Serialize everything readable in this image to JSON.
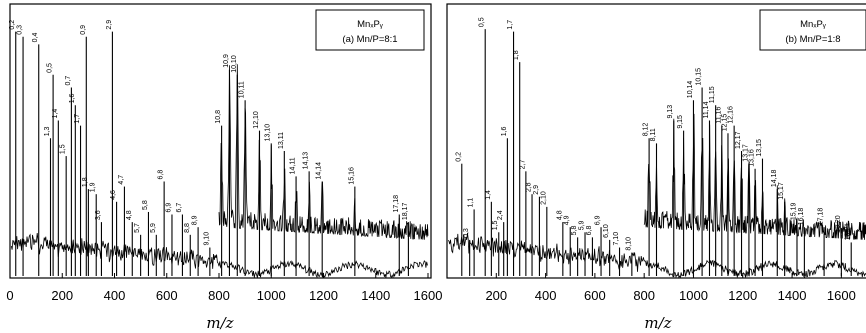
{
  "chart_data": [
    {
      "type": "line",
      "panel": "a",
      "legend": {
        "formula": "MnₓPᵧ",
        "condition": "(a) Mn/P=8:1",
        "placement": "top-right"
      },
      "xlabel": "m/z",
      "ylabel": "",
      "xlim": [
        0,
        1600
      ],
      "xticks": [
        0,
        200,
        400,
        600,
        800,
        1000,
        1200,
        1400,
        1600
      ],
      "inset_region_mz": [
        800,
        1600
      ],
      "peaks": [
        {
          "label": "0,2",
          "mz": 22,
          "intensity": 0.97
        },
        {
          "label": "0,3",
          "mz": 50,
          "intensity": 0.95
        },
        {
          "label": "0,4",
          "mz": 110,
          "intensity": 0.92
        },
        {
          "label": "1,3",
          "mz": 155,
          "intensity": 0.55
        },
        {
          "label": "0,5",
          "mz": 165,
          "intensity": 0.8
        },
        {
          "label": "1,4",
          "mz": 185,
          "intensity": 0.62
        },
        {
          "label": "1,5",
          "mz": 215,
          "intensity": 0.48
        },
        {
          "label": "0,7",
          "mz": 235,
          "intensity": 0.75
        },
        {
          "label": "1,6",
          "mz": 250,
          "intensity": 0.68
        },
        {
          "label": "1,7",
          "mz": 270,
          "intensity": 0.6
        },
        {
          "label": "0,9",
          "mz": 292,
          "intensity": 0.95
        },
        {
          "label": "1,8",
          "mz": 300,
          "intensity": 0.35
        },
        {
          "label": "1,9",
          "mz": 330,
          "intensity": 0.33
        },
        {
          "label": "3,6",
          "mz": 350,
          "intensity": 0.22
        },
        {
          "label": "2,9",
          "mz": 392,
          "intensity": 0.97
        },
        {
          "label": "4,6",
          "mz": 408,
          "intensity": 0.3
        },
        {
          "label": "4,7",
          "mz": 438,
          "intensity": 0.36
        },
        {
          "label": "4,8",
          "mz": 468,
          "intensity": 0.22
        },
        {
          "label": "5,7",
          "mz": 500,
          "intensity": 0.17
        },
        {
          "label": "5,8",
          "mz": 530,
          "intensity": 0.26
        },
        {
          "label": "5,9",
          "mz": 560,
          "intensity": 0.17
        },
        {
          "label": "6,8",
          "mz": 590,
          "intensity": 0.38
        },
        {
          "label": "6,9",
          "mz": 620,
          "intensity": 0.25
        },
        {
          "label": "6,7",
          "mz": 660,
          "intensity": 0.25
        },
        {
          "label": "8,8",
          "mz": 690,
          "intensity": 0.17
        },
        {
          "label": "8,9",
          "mz": 720,
          "intensity": 0.2
        },
        {
          "label": "9,10",
          "mz": 765,
          "intensity": 0.12
        },
        {
          "label": "10,8",
          "mz": 810,
          "intensity": 0.6
        },
        {
          "label": "10,9",
          "mz": 840,
          "intensity": 0.82
        },
        {
          "label": "10,10",
          "mz": 870,
          "intensity": 0.8
        },
        {
          "label": "10,11",
          "mz": 900,
          "intensity": 0.7
        },
        {
          "label": "12,10",
          "mz": 955,
          "intensity": 0.58
        },
        {
          "label": "13,10",
          "mz": 1000,
          "intensity": 0.53
        },
        {
          "label": "13,11",
          "mz": 1050,
          "intensity": 0.5
        },
        {
          "label": "14,11",
          "mz": 1095,
          "intensity": 0.4
        },
        {
          "label": "14,13",
          "mz": 1145,
          "intensity": 0.42
        },
        {
          "label": "14,14",
          "mz": 1195,
          "intensity": 0.38
        },
        {
          "label": "15,16",
          "mz": 1320,
          "intensity": 0.36
        },
        {
          "label": "17,18",
          "mz": 1490,
          "intensity": 0.25
        },
        {
          "label": "18,17",
          "mz": 1525,
          "intensity": 0.22
        }
      ]
    },
    {
      "type": "line",
      "panel": "b",
      "legend": {
        "formula": "MnₓPᵧ",
        "condition": "(b) Mn/P=1:8",
        "placement": "top-right"
      },
      "xlabel": "m/z",
      "ylabel": "",
      "xlim": [
        0,
        1700
      ],
      "xticks": [
        200,
        400,
        600,
        800,
        1000,
        1200,
        1400,
        1600
      ],
      "inset_region_mz": [
        800,
        1700
      ],
      "peaks": [
        {
          "label": "0,2",
          "mz": 60,
          "intensity": 0.45
        },
        {
          "label": "0,3",
          "mz": 92,
          "intensity": 0.15
        },
        {
          "label": "0,5",
          "mz": 155,
          "intensity": 0.98
        },
        {
          "label": "1,1",
          "mz": 110,
          "intensity": 0.27
        },
        {
          "label": "1,4",
          "mz": 180,
          "intensity": 0.3
        },
        {
          "label": "1,5",
          "mz": 210,
          "intensity": 0.18
        },
        {
          "label": "2,4",
          "mz": 230,
          "intensity": 0.22
        },
        {
          "label": "1,6",
          "mz": 245,
          "intensity": 0.55
        },
        {
          "label": "1,7",
          "mz": 270,
          "intensity": 0.97
        },
        {
          "label": "1,8",
          "mz": 295,
          "intensity": 0.85
        },
        {
          "label": "2,7",
          "mz": 320,
          "intensity": 0.42
        },
        {
          "label": "2,8",
          "mz": 345,
          "intensity": 0.33
        },
        {
          "label": "2,9",
          "mz": 375,
          "intensity": 0.32
        },
        {
          "label": "2,10",
          "mz": 405,
          "intensity": 0.28
        },
        {
          "label": "4,8",
          "mz": 470,
          "intensity": 0.22
        },
        {
          "label": "4,9",
          "mz": 500,
          "intensity": 0.2
        },
        {
          "label": "5,8",
          "mz": 530,
          "intensity": 0.16
        },
        {
          "label": "5,9",
          "mz": 560,
          "intensity": 0.18
        },
        {
          "label": "6,8",
          "mz": 590,
          "intensity": 0.16
        },
        {
          "label": "6,9",
          "mz": 625,
          "intensity": 0.2
        },
        {
          "label": "6,10",
          "mz": 660,
          "intensity": 0.15
        },
        {
          "label": "7,10",
          "mz": 700,
          "intensity": 0.12
        },
        {
          "label": "8,10",
          "mz": 750,
          "intensity": 0.1
        },
        {
          "label": "8,12",
          "mz": 820,
          "intensity": 0.55
        },
        {
          "label": "8,11",
          "mz": 850,
          "intensity": 0.53
        },
        {
          "label": "9,13",
          "mz": 920,
          "intensity": 0.62
        },
        {
          "label": "9,15",
          "mz": 960,
          "intensity": 0.58
        },
        {
          "label": "10,14",
          "mz": 1000,
          "intensity": 0.7
        },
        {
          "label": "10,15",
          "mz": 1035,
          "intensity": 0.75
        },
        {
          "label": "11,14",
          "mz": 1065,
          "intensity": 0.62
        },
        {
          "label": "11,15",
          "mz": 1090,
          "intensity": 0.68
        },
        {
          "label": "11,16",
          "mz": 1115,
          "intensity": 0.6
        },
        {
          "label": "12,15",
          "mz": 1140,
          "intensity": 0.57
        },
        {
          "label": "12,16",
          "mz": 1165,
          "intensity": 0.6
        },
        {
          "label": "12,17",
          "mz": 1195,
          "intensity": 0.5
        },
        {
          "label": "13,17",
          "mz": 1225,
          "intensity": 0.45
        },
        {
          "label": "13,16",
          "mz": 1250,
          "intensity": 0.43
        },
        {
          "label": "13,15",
          "mz": 1280,
          "intensity": 0.47
        },
        {
          "label": "14,18",
          "mz": 1340,
          "intensity": 0.35
        },
        {
          "label": "15,17",
          "mz": 1370,
          "intensity": 0.3
        },
        {
          "label": "15,19",
          "mz": 1420,
          "intensity": 0.22
        },
        {
          "label": "16,18",
          "mz": 1450,
          "intensity": 0.2
        },
        {
          "label": "17,18",
          "mz": 1530,
          "intensity": 0.2
        },
        {
          "label": "18,20",
          "mz": 1600,
          "intensity": 0.17
        },
        {
          "label": "18,21",
          "mz": 1640,
          "intensity": 0.14
        }
      ]
    }
  ]
}
